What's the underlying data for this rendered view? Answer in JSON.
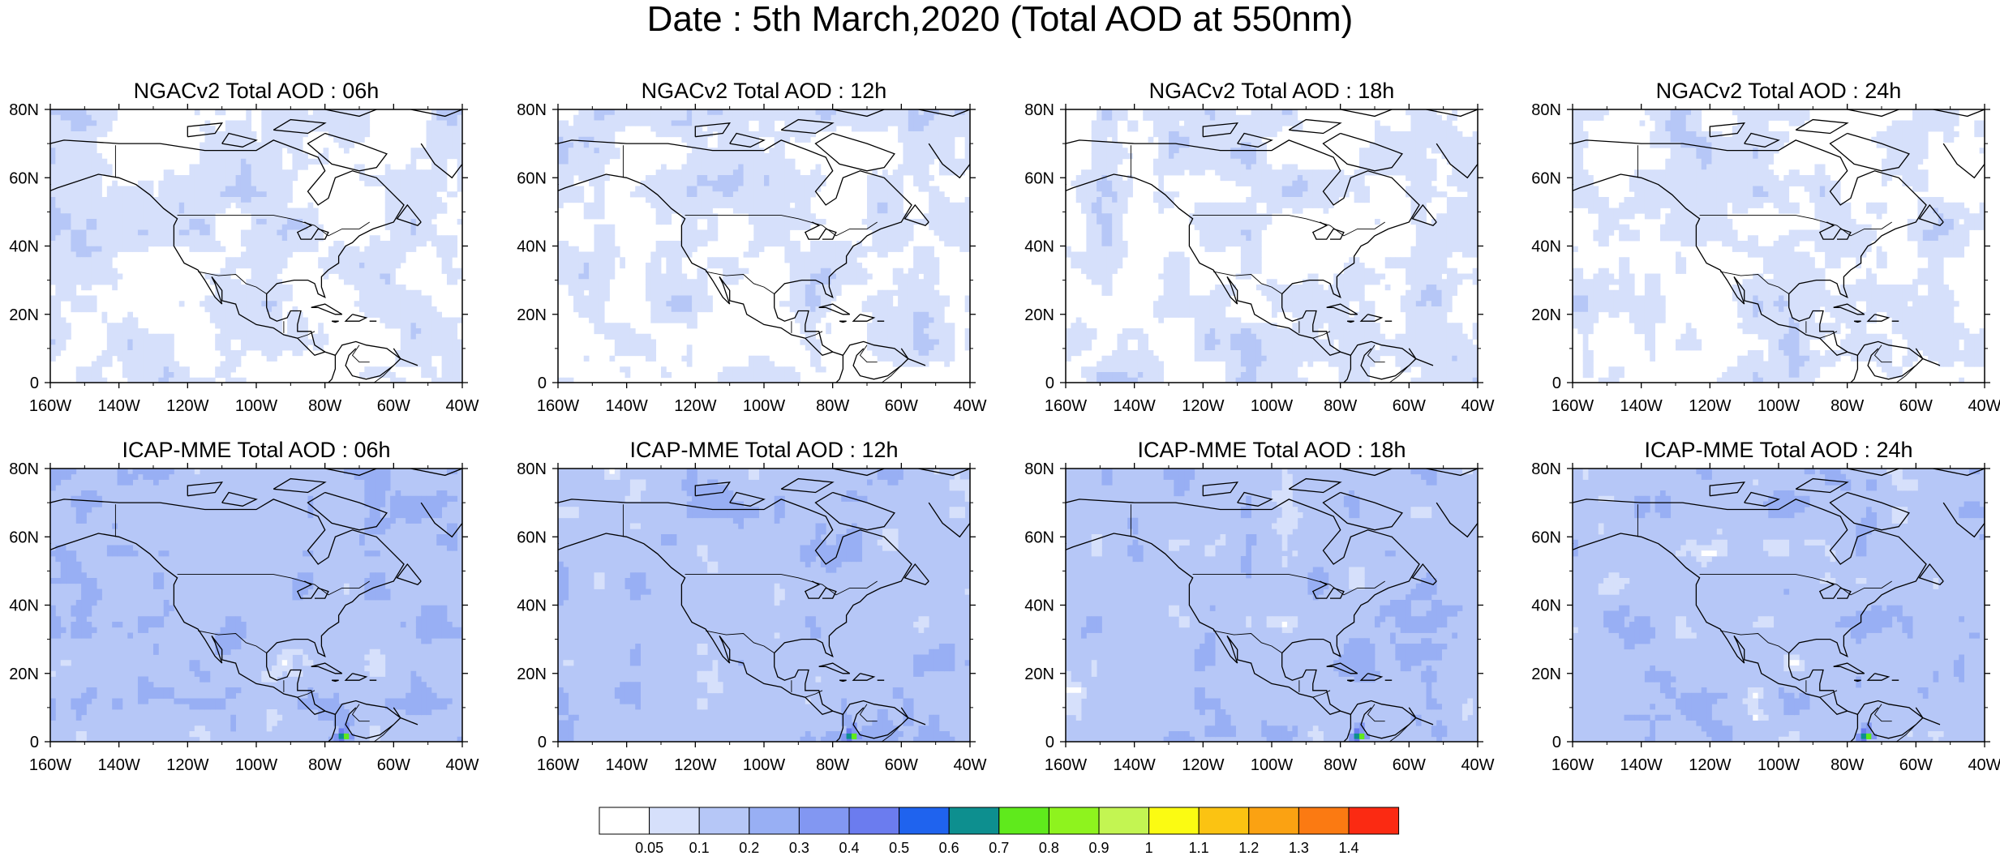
{
  "title": "Date : 5th March,2020 (Total AOD at 550nm)",
  "axes": {
    "lon_labels": [
      "160W",
      "140W",
      "120W",
      "100W",
      "80W",
      "60W",
      "40W"
    ],
    "lat_labels": [
      "80N",
      "60N",
      "40N",
      "20N",
      "0"
    ]
  },
  "panels": [
    {
      "title": "NGACv2 Total AOD : 06h",
      "model": "NGAC",
      "hour": 6
    },
    {
      "title": "NGACv2 Total AOD : 12h",
      "model": "NGAC",
      "hour": 12
    },
    {
      "title": "NGACv2 Total AOD : 18h",
      "model": "NGAC",
      "hour": 18
    },
    {
      "title": "NGACv2 Total AOD : 24h",
      "model": "NGAC",
      "hour": 24
    },
    {
      "title": "ICAP-MME Total AOD : 06h",
      "model": "ICAP",
      "hour": 6
    },
    {
      "title": "ICAP-MME Total AOD : 12h",
      "model": "ICAP",
      "hour": 12
    },
    {
      "title": "ICAP-MME Total AOD : 18h",
      "model": "ICAP",
      "hour": 18
    },
    {
      "title": "ICAP-MME Total AOD : 24h",
      "model": "ICAP",
      "hour": 24
    }
  ],
  "colorbar": {
    "colors": [
      "#ffffff",
      "#d6e0fb",
      "#b6c7f7",
      "#98aff4",
      "#8297f2",
      "#6b7cef",
      "#1f63ee",
      "#0d8f8f",
      "#5fea1c",
      "#8ef31e",
      "#c3f552",
      "#fbfb12",
      "#fbc312",
      "#fba212",
      "#fb7a12",
      "#fb2a12"
    ],
    "labels": [
      "0.05",
      "0.1",
      "0.2",
      "0.3",
      "0.4",
      "0.5",
      "0.6",
      "0.7",
      "0.8",
      "0.9",
      "1",
      "1.1",
      "1.2",
      "1.3",
      "1.4"
    ]
  }
}
